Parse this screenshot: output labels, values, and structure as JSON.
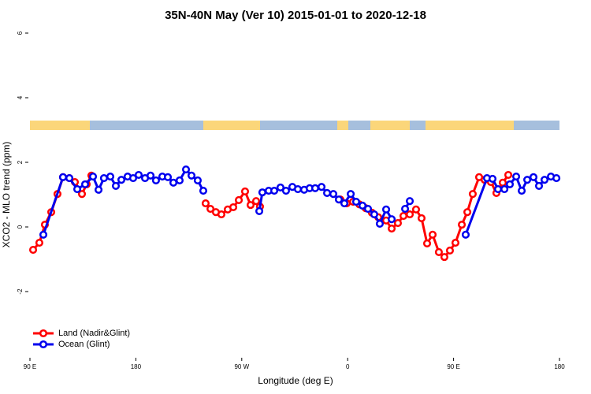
{
  "chart_data": {
    "type": "line",
    "title": "35N-40N May (Ver 10)   2015-01-01 to 2020-12-18",
    "x_label": "Longitude (deg E)",
    "y_label": "XCO2 - MLO trend (ppm)",
    "xlim": [
      90,
      540
    ],
    "xticks": [
      {
        "value": 90,
        "label": "90 E"
      },
      180,
      {
        "value": 270,
        "label": "90 W"
      },
      {
        "value": 360,
        "label": "0"
      },
      {
        "value": 450,
        "label": "90 E"
      },
      {
        "value": 540,
        "label": "180"
      }
    ],
    "ylim": [
      -4,
      6
    ],
    "yticks": [
      -2,
      0,
      2,
      4,
      6
    ],
    "legend": "bottom-left",
    "series": [
      {
        "name": "Land (Nadir&Glint)",
        "color": "#ff0000",
        "x": [
          92.7,
          98.0,
          102.7,
          108.1,
          113.4,
          118.1,
          123.5,
          128.2,
          134.2,
          138.2,
          142.2,
          null,
          239.3,
          243.4,
          248.0,
          252.7,
          258.1,
          262.8,
          267.5,
          272.8,
          277.5,
          282.2,
          285.5,
          null,
          353.8,
          359.2,
          364.6,
          369.9,
          375.3,
          380.6,
          386.0,
          392.7,
          397.4,
          402.7,
          407.4,
          412.8,
          418.1,
          422.8,
          427.5,
          432.2,
          437.5,
          442.2,
          446.9,
          451.6,
          457.0,
          461.7,
          466.3,
          471.7,
          476.4,
          481.7,
          486.4,
          491.8,
          496.5
        ],
        "values": [
          -0.71,
          -0.49,
          0.07,
          0.46,
          1.02,
          1.54,
          1.51,
          1.39,
          1.02,
          1.32,
          1.59,
          null,
          0.73,
          0.56,
          0.46,
          0.39,
          0.54,
          0.61,
          0.83,
          1.1,
          0.68,
          0.8,
          0.63,
          null,
          0.85,
          0.73,
          0.78,
          0.7,
          0.58,
          0.44,
          0.3,
          0.2,
          -0.05,
          0.12,
          0.34,
          0.39,
          0.54,
          0.27,
          -0.51,
          -0.24,
          -0.78,
          -0.93,
          -0.73,
          -0.49,
          0.07,
          0.46,
          1.02,
          1.54,
          1.46,
          1.39,
          1.05,
          1.37,
          1.61
        ]
      },
      {
        "name": "Ocean (Glint)",
        "color": "#0000ee",
        "x": [
          101.4,
          118.1,
          123.5,
          130.2,
          136.9,
          143.6,
          148.3,
          152.9,
          158.3,
          163.0,
          167.7,
          173.0,
          177.7,
          182.4,
          187.8,
          192.5,
          197.1,
          202.5,
          207.2,
          211.9,
          217.2,
          222.6,
          227.3,
          232.6,
          237.3,
          null,
          284.9,
          287.5,
          292.9,
          297.6,
          302.9,
          307.6,
          313.0,
          317.7,
          323.0,
          327.7,
          332.4,
          337.8,
          342.5,
          347.8,
          352.5,
          357.2,
          362.6,
          367.2,
          372.6,
          377.3,
          382.6,
          387.3,
          392.7,
          397.4,
          null,
          408.8,
          412.8,
          null,
          460.3,
          478.4,
          483.1,
          487.8,
          493.2,
          497.8,
          503.2,
          507.9,
          512.6,
          517.9,
          522.6,
          527.3,
          532.7,
          537.4
        ],
        "values": [
          -0.24,
          1.54,
          1.51,
          1.17,
          1.32,
          1.56,
          1.15,
          1.51,
          1.56,
          1.27,
          1.46,
          1.56,
          1.51,
          1.61,
          1.51,
          1.59,
          1.44,
          1.56,
          1.54,
          1.37,
          1.44,
          1.78,
          1.59,
          1.44,
          1.12,
          null,
          0.49,
          1.07,
          1.12,
          1.12,
          1.22,
          1.12,
          1.24,
          1.17,
          1.15,
          1.2,
          1.2,
          1.24,
          1.05,
          1.02,
          0.85,
          0.73,
          1.02,
          0.78,
          0.66,
          0.56,
          0.39,
          0.1,
          0.54,
          0.24,
          null,
          0.56,
          0.8,
          null,
          -0.24,
          1.51,
          1.49,
          1.17,
          1.17,
          1.32,
          1.56,
          1.12,
          1.46,
          1.54,
          1.27,
          1.46,
          1.56,
          1.51
        ]
      }
    ]
  }
}
